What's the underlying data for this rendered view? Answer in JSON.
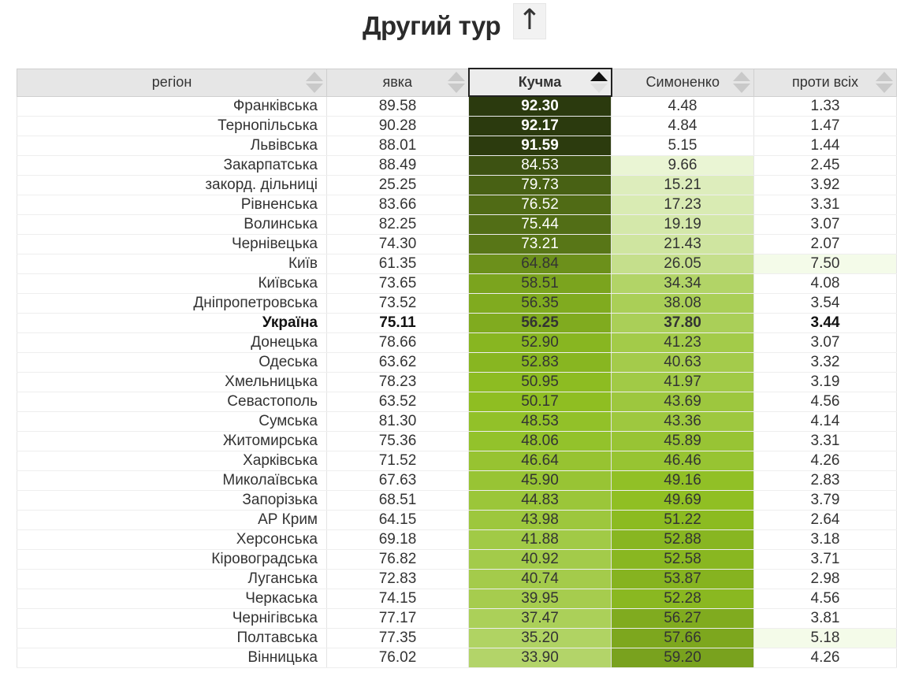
{
  "header": {
    "title": "Другий тур",
    "toggle_symbol": "↑"
  },
  "columns": [
    {
      "key": "region",
      "label": "регіон"
    },
    {
      "key": "turnout",
      "label": "явка"
    },
    {
      "key": "kuchma",
      "label": "Кучма"
    },
    {
      "key": "symonenko",
      "label": "Симоненко"
    },
    {
      "key": "against",
      "label": "проти всіх"
    }
  ],
  "sorted_column": "Кучма",
  "highlight_row": "Україна",
  "colors": {
    "scale_dark": "#2b3a0e",
    "scale_mid": "#8fbf22",
    "scale_light": "#f4fbe9"
  },
  "rows": [
    {
      "region": "Франківська",
      "turnout": "89.58",
      "kuchma": "92.30",
      "symonenko": "4.48",
      "against": "1.33"
    },
    {
      "region": "Тернопільська",
      "turnout": "90.28",
      "kuchma": "92.17",
      "symonenko": "4.84",
      "against": "1.47"
    },
    {
      "region": "Львівська",
      "turnout": "88.01",
      "kuchma": "91.59",
      "symonenko": "5.15",
      "against": "1.44"
    },
    {
      "region": "Закарпатська",
      "turnout": "88.49",
      "kuchma": "84.53",
      "symonenko": "9.66",
      "against": "2.45"
    },
    {
      "region": "закорд. дільниці",
      "turnout": "25.25",
      "kuchma": "79.73",
      "symonenko": "15.21",
      "against": "3.92"
    },
    {
      "region": "Рівненська",
      "turnout": "83.66",
      "kuchma": "76.52",
      "symonenko": "17.23",
      "against": "3.31"
    },
    {
      "region": "Волинська",
      "turnout": "82.25",
      "kuchma": "75.44",
      "symonenko": "19.19",
      "against": "3.07"
    },
    {
      "region": "Чернівецька",
      "turnout": "74.30",
      "kuchma": "73.21",
      "symonenko": "21.43",
      "against": "2.07"
    },
    {
      "region": "Київ",
      "turnout": "61.35",
      "kuchma": "64.84",
      "symonenko": "26.05",
      "against": "7.50"
    },
    {
      "region": "Київська",
      "turnout": "73.65",
      "kuchma": "58.51",
      "symonenko": "34.34",
      "against": "4.08"
    },
    {
      "region": "Дніпропетровська",
      "turnout": "73.52",
      "kuchma": "56.35",
      "symonenko": "38.08",
      "against": "3.54"
    },
    {
      "region": "Україна",
      "turnout": "75.11",
      "kuchma": "56.25",
      "symonenko": "37.80",
      "against": "3.44"
    },
    {
      "region": "Донецька",
      "turnout": "78.66",
      "kuchma": "52.90",
      "symonenko": "41.23",
      "against": "3.07"
    },
    {
      "region": "Одеська",
      "turnout": "63.62",
      "kuchma": "52.83",
      "symonenko": "40.63",
      "against": "3.32"
    },
    {
      "region": "Хмельницька",
      "turnout": "78.23",
      "kuchma": "50.95",
      "symonenko": "41.97",
      "against": "3.19"
    },
    {
      "region": "Севастополь",
      "turnout": "63.52",
      "kuchma": "50.17",
      "symonenko": "43.69",
      "against": "4.56"
    },
    {
      "region": "Сумська",
      "turnout": "81.30",
      "kuchma": "48.53",
      "symonenko": "43.36",
      "against": "4.14"
    },
    {
      "region": "Житомирська",
      "turnout": "75.36",
      "kuchma": "48.06",
      "symonenko": "45.89",
      "against": "3.31"
    },
    {
      "region": "Харківська",
      "turnout": "71.52",
      "kuchma": "46.64",
      "symonenko": "46.46",
      "against": "4.26"
    },
    {
      "region": "Миколаївська",
      "turnout": "67.63",
      "kuchma": "45.90",
      "symonenko": "49.16",
      "against": "2.83"
    },
    {
      "region": "Запорізька",
      "turnout": "68.51",
      "kuchma": "44.83",
      "symonenko": "49.69",
      "against": "3.79"
    },
    {
      "region": "АР Крим",
      "turnout": "64.15",
      "kuchma": "43.98",
      "symonenko": "51.22",
      "against": "2.64"
    },
    {
      "region": "Херсонська",
      "turnout": "69.18",
      "kuchma": "41.88",
      "symonenko": "52.88",
      "against": "3.18"
    },
    {
      "region": "Кіровоградська",
      "turnout": "76.82",
      "kuchma": "40.92",
      "symonenko": "52.58",
      "against": "3.71"
    },
    {
      "region": "Луганська",
      "turnout": "72.83",
      "kuchma": "40.74",
      "symonenko": "53.87",
      "against": "2.98"
    },
    {
      "region": "Черкаська",
      "turnout": "74.15",
      "kuchma": "39.95",
      "symonenko": "52.28",
      "against": "4.56"
    },
    {
      "region": "Чернігівська",
      "turnout": "77.17",
      "kuchma": "37.47",
      "symonenko": "56.27",
      "against": "3.81"
    },
    {
      "region": "Полтавська",
      "turnout": "77.35",
      "kuchma": "35.20",
      "symonenko": "57.66",
      "against": "5.18"
    },
    {
      "region": "Вінницька",
      "turnout": "76.02",
      "kuchma": "33.90",
      "symonenko": "59.20",
      "against": "4.26"
    }
  ]
}
